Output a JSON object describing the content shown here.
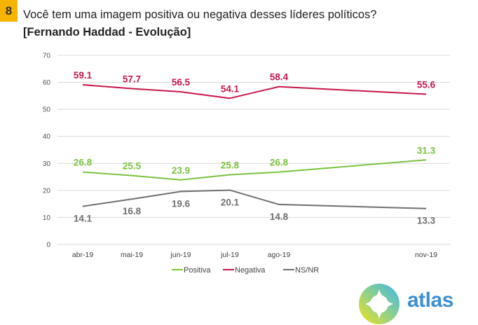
{
  "slide": {
    "number": "8"
  },
  "header": {
    "title": "Você tem uma imagem positiva ou negativa desses líderes políticos?",
    "subtitle": "[Fernando Haddad - Evolução]"
  },
  "logo": {
    "text": "atlas",
    "icon": "atlas-compass-icon"
  },
  "chart_data": {
    "type": "line",
    "title": "Você tem uma imagem positiva ou negativa desses líderes políticos?",
    "subtitle": "[Fernando Haddad - Evolução]",
    "xlabel": "",
    "ylabel": "",
    "categories": [
      "abr-19",
      "mai-19",
      "jun-19",
      "jul-19",
      "ago-19",
      "nov-19"
    ],
    "x_month_index": [
      0,
      1,
      2,
      3,
      4,
      7
    ],
    "ylim": [
      0,
      70
    ],
    "yticks": [
      0,
      10,
      20,
      30,
      40,
      50,
      60,
      70
    ],
    "grid": true,
    "legend_position": "bottom",
    "series": [
      {
        "name": "Positiva",
        "color": "#7cc242",
        "values": [
          26.8,
          25.5,
          23.9,
          25.8,
          26.8,
          31.3
        ],
        "labels": [
          "26.8",
          "25.5",
          "23.9",
          "25.8",
          "26.8",
          "31.3"
        ],
        "label_position": "above"
      },
      {
        "name": "Negativa",
        "color": "#c8174a",
        "values": [
          59.1,
          57.7,
          56.5,
          54.1,
          58.4,
          55.6
        ],
        "labels": [
          "59.1",
          "57.7",
          "56.5",
          "54.1",
          "58.4",
          "55.6"
        ],
        "label_position": "above"
      },
      {
        "name": "NS/NR",
        "color": "#707070",
        "values": [
          14.1,
          16.8,
          19.6,
          20.1,
          14.8,
          13.3
        ],
        "labels": [
          "14.1",
          "16.8",
          "19.6",
          "20.1",
          "14.8",
          "13.3"
        ],
        "label_position": "below"
      }
    ]
  }
}
